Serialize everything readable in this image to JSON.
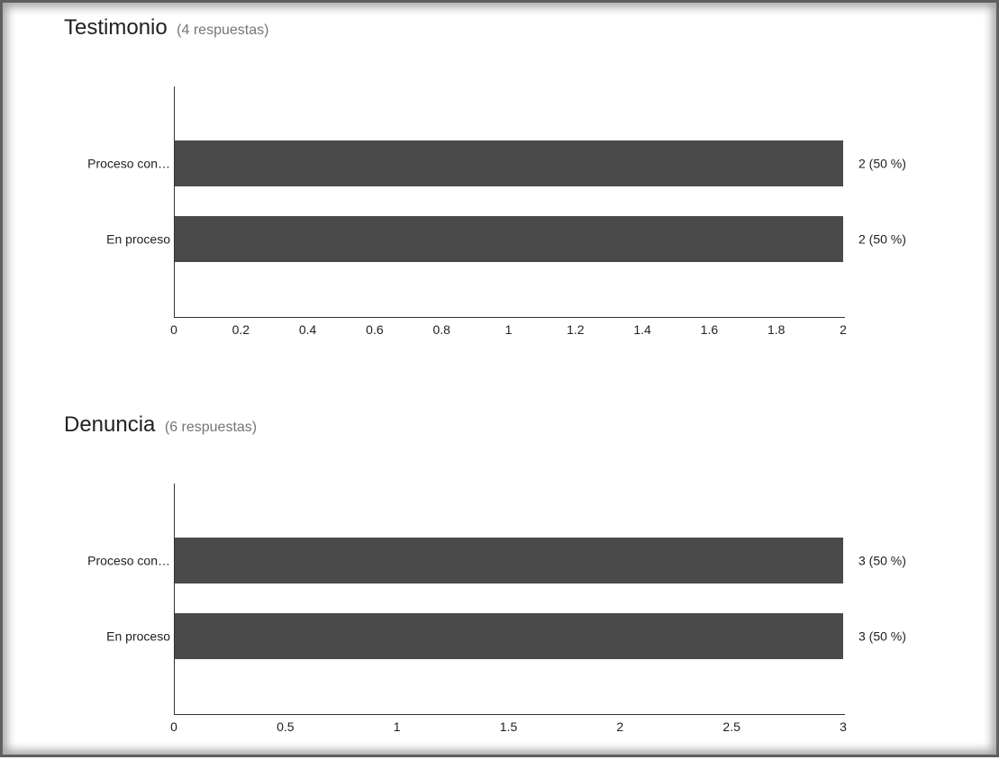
{
  "chart_data": [
    {
      "type": "bar",
      "orientation": "horizontal",
      "title": "Testimonio",
      "subtitle": "(4 respuestas)",
      "categories": [
        "Proceso con…",
        "En proceso"
      ],
      "values": [
        2,
        2
      ],
      "data_labels": [
        "2 (50 %)",
        "2 (50 %)"
      ],
      "xlim": [
        0,
        2
      ],
      "xticks": [
        0,
        0.2,
        0.4,
        0.6,
        0.8,
        1,
        1.2,
        1.4,
        1.6,
        1.8,
        2
      ],
      "xtick_labels": [
        "0",
        "0.2",
        "0.4",
        "0.6",
        "0.8",
        "1",
        "1.2",
        "1.4",
        "1.6",
        "1.8",
        "2"
      ],
      "xlabel": "",
      "ylabel": "",
      "grid": false,
      "bar_color": "#4a4a4a"
    },
    {
      "type": "bar",
      "orientation": "horizontal",
      "title": "Denuncia",
      "subtitle": "(6 respuestas)",
      "categories": [
        "Proceso con…",
        "En proceso"
      ],
      "values": [
        3,
        3
      ],
      "data_labels": [
        "3 (50 %)",
        "3 (50 %)"
      ],
      "xlim": [
        0,
        3
      ],
      "xticks": [
        0,
        0.5,
        1,
        1.5,
        2,
        2.5,
        3
      ],
      "xtick_labels": [
        "0",
        "0.5",
        "1",
        "1.5",
        "2",
        "2.5",
        "3"
      ],
      "xlabel": "",
      "ylabel": "",
      "grid": false,
      "bar_color": "#4a4a4a"
    }
  ]
}
